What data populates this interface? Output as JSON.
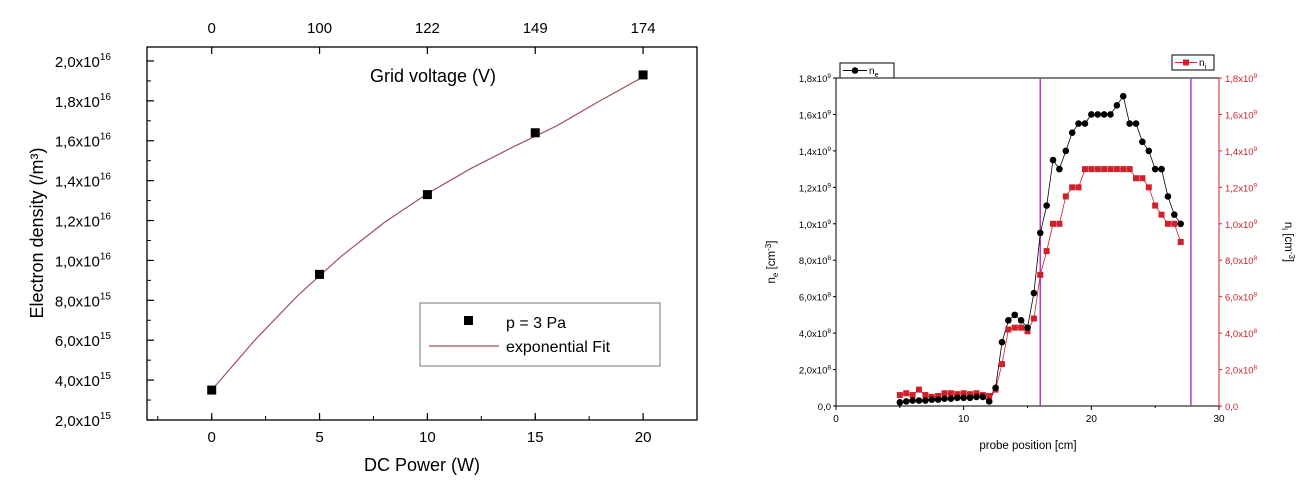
{
  "chart_data": [
    {
      "type": "scatter",
      "xlabel": "DC Power (W)",
      "ylabel": "Electron density (/m³)",
      "top_axis_label": "Grid voltage (V)",
      "x_ticks": [
        "0",
        "5",
        "10",
        "15",
        "20"
      ],
      "y_ticks": [
        {
          "m": "2,0x10",
          "e": "15"
        },
        {
          "m": "4,0x10",
          "e": "15"
        },
        {
          "m": "6,0x10",
          "e": "15"
        },
        {
          "m": "8,0x10",
          "e": "15"
        },
        {
          "m": "1,0x10",
          "e": "16"
        },
        {
          "m": "1,2x10",
          "e": "16"
        },
        {
          "m": "1,4x10",
          "e": "16"
        },
        {
          "m": "1,6x10",
          "e": "16"
        },
        {
          "m": "1,8x10",
          "e": "16"
        },
        {
          "m": "2,0x10",
          "e": "16"
        }
      ],
      "top_ticks": [
        {
          "x": 0,
          "label": "0"
        },
        {
          "x": 5,
          "label": "100"
        },
        {
          "x": 10,
          "label": "122"
        },
        {
          "x": 15,
          "label": "149"
        },
        {
          "x": 20,
          "label": "174"
        }
      ],
      "xlim": [
        -3,
        22.5
      ],
      "ylim": [
        2000000000000000.0,
        2.07e+16
      ],
      "series": [
        {
          "name": "p = 3 Pa",
          "marker": "square",
          "color": "#000000",
          "x": [
            0,
            5,
            10,
            15,
            20
          ],
          "y": [
            3500000000000000.0,
            9300000000000000.0,
            1.33e+16,
            1.64e+16,
            1.93e+16
          ]
        },
        {
          "name": "exponential Fit",
          "kind": "line",
          "color": "#a0525a",
          "x": [
            0,
            2,
            4,
            6,
            8,
            10,
            12,
            14,
            16,
            18,
            20
          ],
          "y": [
            3500000000000000.0,
            6000000000000000.0,
            8250000000000000.0,
            1.02e+16,
            1.19e+16,
            1.335e+16,
            1.46e+16,
            1.57e+16,
            1.675e+16,
            1.8e+16,
            1.92e+16
          ]
        }
      ],
      "legend_position": "lower-right",
      "grid": false
    },
    {
      "type": "scatter",
      "xlabel": "probe position [cm]",
      "ylabel_left": {
        "base": "n",
        "sub": "e",
        "unit": " [cm",
        "unit_sup": "-3",
        "close": "]"
      },
      "ylabel_right": {
        "base": "n",
        "sub": "i",
        "unit": " [cm",
        "unit_sup": "-3",
        "close": "]"
      },
      "x_ticks": [
        "0",
        "10",
        "20",
        "30"
      ],
      "xlim": [
        0,
        30
      ],
      "ylim": [
        0,
        1800000000.0
      ],
      "y_ticks": [
        {
          "m": "0,0",
          "e": ""
        },
        {
          "m": "2,0x10",
          "e": "8"
        },
        {
          "m": "4,0x10",
          "e": "8"
        },
        {
          "m": "6,0x10",
          "e": "8"
        },
        {
          "m": "8,0x10",
          "e": "8"
        },
        {
          "m": "1,0x10",
          "e": "9"
        },
        {
          "m": "1,2x10",
          "e": "9"
        },
        {
          "m": "1,4x10",
          "e": "9"
        },
        {
          "m": "1,6x10",
          "e": "9"
        },
        {
          "m": "1,8x10",
          "e": "9"
        }
      ],
      "vlines": [
        16,
        27.8
      ],
      "vline_color": "#b03cc8",
      "right_axis_color": "#d0202a",
      "legend_left": {
        "base": "n",
        "sub": "e"
      },
      "legend_right": {
        "base": "n",
        "sub": "i"
      },
      "series": [
        {
          "name": "ne",
          "marker": "circle",
          "color": "#000000",
          "x": [
            5,
            5.5,
            6,
            6.5,
            7,
            7.5,
            8,
            8.5,
            9,
            9.5,
            10,
            10.5,
            11,
            11.5,
            12,
            12.5,
            13,
            13.5,
            14,
            14.5,
            15,
            15.5,
            16,
            16.5,
            17,
            17.5,
            18,
            18.5,
            19,
            19.5,
            20,
            20.5,
            21,
            21.5,
            22,
            22.5,
            23,
            23.5,
            24,
            24.5,
            25,
            25.5,
            26,
            26.5,
            27
          ],
          "y": [
            20000000.0,
            25000000.0,
            30000000.0,
            30000000.0,
            30000000.0,
            35000000.0,
            35000000.0,
            40000000.0,
            40000000.0,
            45000000.0,
            45000000.0,
            45000000.0,
            50000000.0,
            50000000.0,
            25000000.0,
            100000000.0,
            350000000.0,
            470000000.0,
            500000000.0,
            470000000.0,
            430000000.0,
            620000000.0,
            950000000.0,
            1100000000.0,
            1350000000.0,
            1300000000.0,
            1400000000.0,
            1500000000.0,
            1550000000.0,
            1550000000.0,
            1600000000.0,
            1600000000.0,
            1600000000.0,
            1600000000.0,
            1650000000.0,
            1700000000.0,
            1550000000.0,
            1550000000.0,
            1450000000.0,
            1400000000.0,
            1300000000.0,
            1300000000.0,
            1150000000.0,
            1050000000.0,
            1000000000.0
          ]
        },
        {
          "name": "ni",
          "marker": "square",
          "color": "#d0202a",
          "x": [
            5,
            5.5,
            6,
            6.5,
            7,
            7.5,
            8,
            8.5,
            9,
            9.5,
            10,
            10.5,
            11,
            11.5,
            12,
            12.5,
            13,
            13.5,
            14,
            14.5,
            15,
            15.5,
            16,
            16.5,
            17,
            17.5,
            18,
            18.5,
            19,
            19.5,
            20,
            20.5,
            21,
            21.5,
            22,
            22.5,
            23,
            23.5,
            24,
            24.5,
            25,
            25.5,
            26,
            26.5,
            27
          ],
          "y": [
            60000000.0,
            70000000.0,
            60000000.0,
            90000000.0,
            60000000.0,
            50000000.0,
            55000000.0,
            70000000.0,
            70000000.0,
            65000000.0,
            70000000.0,
            65000000.0,
            70000000.0,
            60000000.0,
            55000000.0,
            90000000.0,
            230000000.0,
            420000000.0,
            430000000.0,
            430000000.0,
            410000000.0,
            480000000.0,
            720000000.0,
            850000000.0,
            1000000000.0,
            1000000000.0,
            1150000000.0,
            1200000000.0,
            1200000000.0,
            1300000000.0,
            1300000000.0,
            1300000000.0,
            1300000000.0,
            1300000000.0,
            1300000000.0,
            1300000000.0,
            1300000000.0,
            1250000000.0,
            1250000000.0,
            1200000000.0,
            1100000000.0,
            1050000000.0,
            1000000000.0,
            1000000000.0,
            900000000.0
          ]
        }
      ],
      "grid": false
    }
  ]
}
